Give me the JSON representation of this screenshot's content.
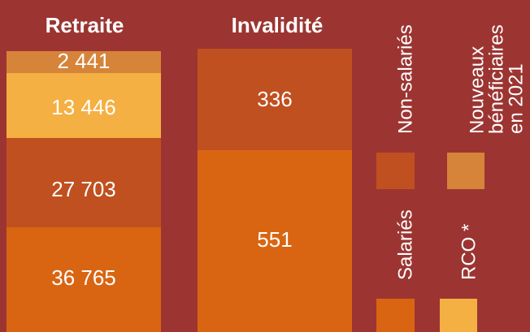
{
  "columns": [
    {
      "title": "Retraite",
      "segments": [
        "2 441",
        "13 446",
        "27 703",
        "36 765"
      ]
    },
    {
      "title": "Invalidité",
      "segments": [
        "336",
        "551"
      ]
    }
  ],
  "legend": {
    "non_salaries": "Non-salariés",
    "nouveaux": [
      "Nouveaux",
      "bénéficiaires",
      "en 2021"
    ],
    "salaries": "Salariés",
    "rco": "RCO *"
  }
}
